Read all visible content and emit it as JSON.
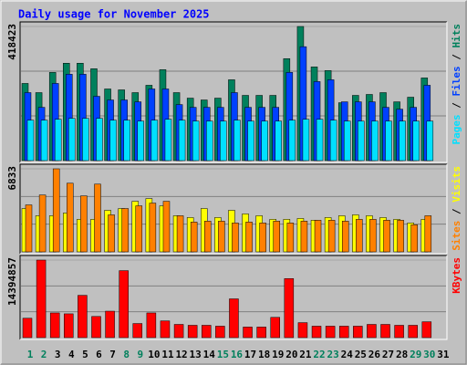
{
  "title": "Daily usage for November 2025",
  "chart_data": [
    {
      "type": "bar",
      "ylim": [
        0,
        418423
      ],
      "yticks": [
        418423
      ],
      "grid": true,
      "series": [
        {
          "name": "Hits",
          "color": "#00805c",
          "values": [
            240700,
            212100,
            275100,
            303800,
            303800,
            286600,
            223500,
            220700,
            212100,
            235000,
            283700,
            212100,
            194900,
            189200,
            194900,
            252200,
            203500,
            203500,
            203500,
            318100,
            418423,
            292300,
            280900,
            180600,
            203500,
            206400,
            212100,
            183400,
            197800,
            257900,
            null
          ]
        },
        {
          "name": "Files",
          "color": "#0040ff",
          "values": [
            212100,
            166200,
            240700,
            269400,
            269400,
            200600,
            189200,
            189200,
            183400,
            223500,
            223500,
            174800,
            166200,
            166200,
            166200,
            212100,
            166200,
            166200,
            166200,
            275100,
            355400,
            246500,
            252200,
            183400,
            183400,
            183400,
            166200,
            160500,
            166200,
            235000,
            null
          ]
        },
        {
          "name": "Pages",
          "color": "#00e0ff",
          "values": [
            126100,
            126100,
            128900,
            131800,
            131800,
            131800,
            126100,
            126100,
            123200,
            126100,
            128900,
            126100,
            123200,
            123200,
            123200,
            126100,
            123200,
            123200,
            123200,
            126100,
            128900,
            128900,
            126100,
            123200,
            123200,
            123200,
            123200,
            123200,
            123200,
            123200,
            null
          ]
        }
      ]
    },
    {
      "type": "bar",
      "ylim": [
        0,
        6833
      ],
      "yticks": [
        6833
      ],
      "grid": true,
      "series": [
        {
          "name": "Visits",
          "color": "#ffff00",
          "values": [
            3566,
            2972,
            2972,
            3195,
            2675,
            2675,
            3418,
            3566,
            4161,
            4384,
            3789,
            2972,
            2823,
            3566,
            2823,
            3418,
            3121,
            2972,
            2675,
            2675,
            2749,
            2601,
            2823,
            2972,
            3046,
            2972,
            2823,
            2675,
            2378,
            2675,
            null
          ]
        },
        {
          "name": "Sites",
          "color": "#ff8000",
          "values": [
            3864,
            4681,
            6833,
            5647,
            4607,
            5573,
            3046,
            3566,
            3789,
            4012,
            4161,
            2972,
            2452,
            2526,
            2526,
            2378,
            2452,
            2378,
            2526,
            2378,
            2526,
            2601,
            2601,
            2526,
            2675,
            2675,
            2601,
            2601,
            2229,
            2972,
            null
          ]
        }
      ]
    },
    {
      "type": "bar",
      "ylim": [
        0,
        14394857
      ],
      "yticks": [
        14394857
      ],
      "grid": true,
      "series": [
        {
          "name": "KBytes",
          "color": "#ff0000",
          "values": [
            3598700,
            14394857,
            4580200,
            4416600,
            7851700,
            3925900,
            4907300,
            12431900,
            2617200,
            4580200,
            3108000,
            2453700,
            2290100,
            2290100,
            2126500,
            7197400,
            1962900,
            1962900,
            3762300,
            10959700,
            2780800,
            2126500,
            2126500,
            2126500,
            2126500,
            2453700,
            2453700,
            2290100,
            2290100,
            2944400,
            null
          ]
        }
      ],
      "categories": [
        "1",
        "2",
        "3",
        "4",
        "5",
        "6",
        "7",
        "8",
        "9",
        "10",
        "11",
        "12",
        "13",
        "14",
        "15",
        "16",
        "17",
        "18",
        "19",
        "20",
        "21",
        "22",
        "23",
        "24",
        "25",
        "26",
        "27",
        "28",
        "29",
        "30",
        "31"
      ],
      "category_colors": [
        "#00805c",
        "#00805c",
        "#000000",
        "#000000",
        "#000000",
        "#000000",
        "#000000",
        "#00805c",
        "#00805c",
        "#000000",
        "#000000",
        "#000000",
        "#000000",
        "#000000",
        "#00805c",
        "#00805c",
        "#000000",
        "#000000",
        "#000000",
        "#000000",
        "#000000",
        "#00805c",
        "#00805c",
        "#000000",
        "#000000",
        "#000000",
        "#000000",
        "#000000",
        "#00805c",
        "#00805c",
        "#000000"
      ]
    }
  ]
}
